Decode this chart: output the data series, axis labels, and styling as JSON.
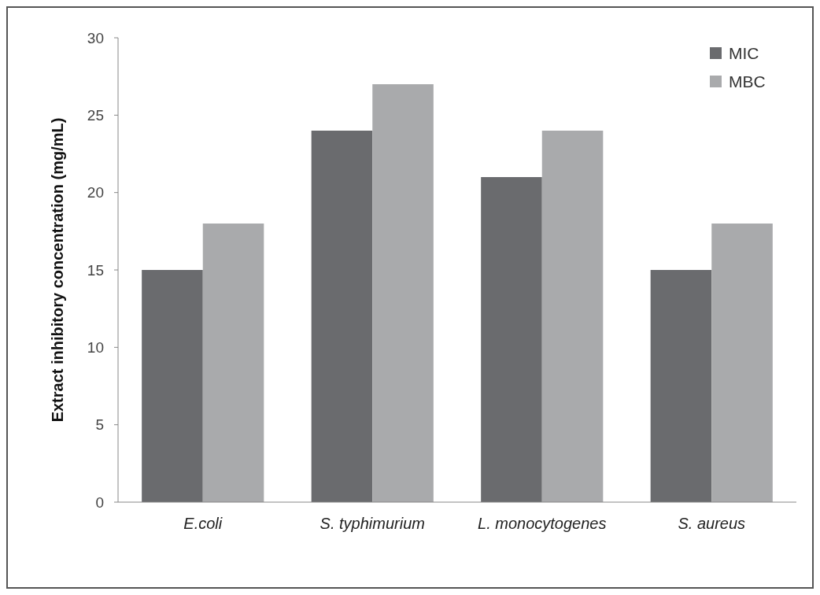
{
  "chart_data": {
    "type": "bar",
    "ylabel": "Extract inhibitory concentration (mg/mL)",
    "categories": [
      "E.coli",
      "S. typhimurium",
      "L. monocytogenes",
      "S. aureus"
    ],
    "series": [
      {
        "name": "MIC",
        "color": "#6a6b6e",
        "values": [
          15,
          24,
          21,
          15
        ]
      },
      {
        "name": "MBC",
        "color": "#a9aaac",
        "values": [
          18,
          27,
          24,
          18
        ]
      }
    ],
    "ylim": [
      0,
      30
    ],
    "yticks": [
      0,
      5,
      10,
      15,
      20,
      25,
      30
    ],
    "grid": false,
    "legend": "top right"
  }
}
